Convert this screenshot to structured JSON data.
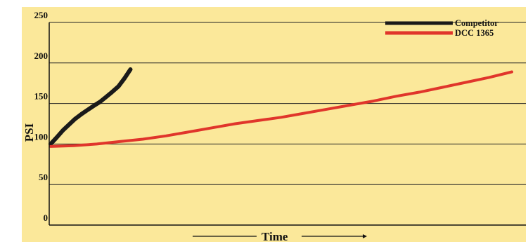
{
  "chart_data": {
    "type": "line",
    "title": "",
    "xlabel": "Time",
    "ylabel": "PSI",
    "ylim": [
      0,
      250
    ],
    "yticks": [
      0,
      50,
      100,
      150,
      200,
      250
    ],
    "xlim": [
      0,
      1
    ],
    "grid": "horizontal",
    "legend_position": "top-right",
    "background_color": "#fbe89a",
    "series": [
      {
        "name": "Competitor",
        "color": "#1a1a1a",
        "x": [
          0,
          0.013,
          0.027,
          0.04,
          0.053,
          0.067,
          0.08,
          0.093,
          0.107,
          0.12,
          0.133,
          0.147,
          0.16,
          0.173
        ],
        "values": [
          100,
          108,
          117,
          124,
          131,
          137,
          142,
          147,
          152,
          158,
          164,
          171,
          181,
          192
        ]
      },
      {
        "name": "DCC 1365",
        "color": "#e0352b",
        "x": [
          0,
          0.05,
          0.1,
          0.15,
          0.2,
          0.25,
          0.3,
          0.35,
          0.4,
          0.45,
          0.5,
          0.55,
          0.6,
          0.65,
          0.7,
          0.75,
          0.8,
          0.85,
          0.9,
          0.95,
          1.0
        ],
        "values": [
          97,
          98,
          100,
          103,
          106,
          110,
          115,
          120,
          125,
          129,
          133,
          138,
          143,
          148,
          153,
          159,
          164,
          170,
          176,
          182,
          189
        ]
      }
    ]
  }
}
